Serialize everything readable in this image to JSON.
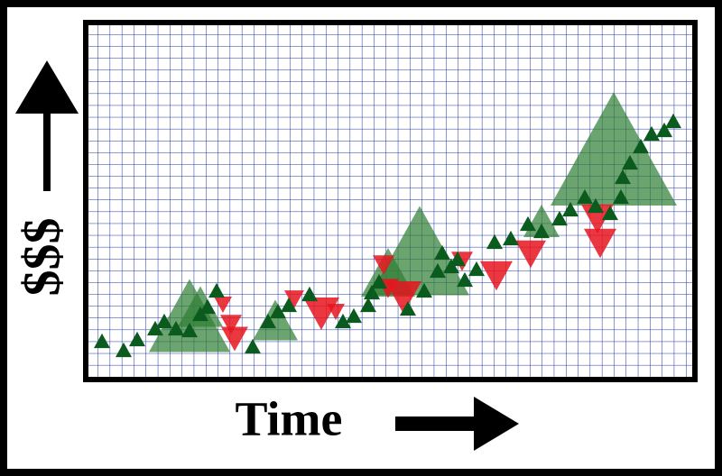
{
  "y_label": "$$$",
  "x_label": "Time"
}
